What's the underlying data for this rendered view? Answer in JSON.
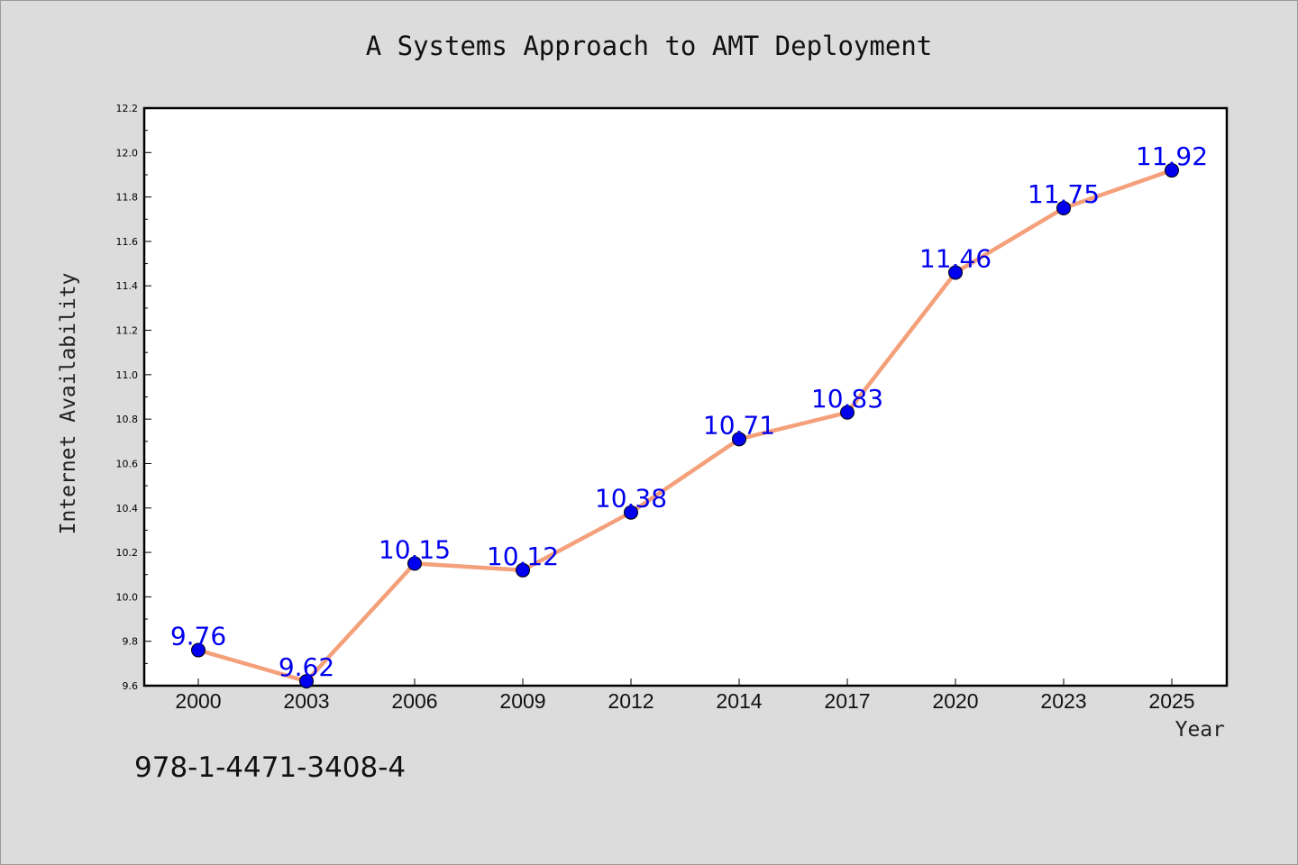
{
  "chart_data": {
    "type": "line",
    "title": "A Systems Approach to AMT Deployment",
    "xlabel": "Year",
    "ylabel": "Internet Availability",
    "categories": [
      "2000",
      "2003",
      "2006",
      "2009",
      "2012",
      "2014",
      "2017",
      "2020",
      "2023",
      "2025"
    ],
    "series": [
      {
        "values": [
          9.76,
          9.62,
          10.15,
          10.12,
          10.38,
          10.71,
          10.83,
          11.46,
          11.75,
          11.92
        ],
        "labels": [
          "9.76",
          "9.62",
          "10.15",
          "10.12",
          "10.38",
          "10.71",
          "10.83",
          "11.46",
          "11.75",
          "11.92"
        ],
        "line_color": "#f4a07a",
        "marker_color": "#0000ee"
      }
    ],
    "ylim": [
      9.6,
      12.2
    ],
    "yticks": [
      "9.6",
      "9.8",
      "10.0",
      "10.2",
      "10.4",
      "10.6",
      "10.8",
      "11.0",
      "11.2",
      "11.4",
      "11.6",
      "11.8",
      "12.0",
      "12.2"
    ],
    "grid": false,
    "label_color": "#0000ee"
  },
  "footer": {
    "isbn": "978-1-4471-3408-4"
  }
}
